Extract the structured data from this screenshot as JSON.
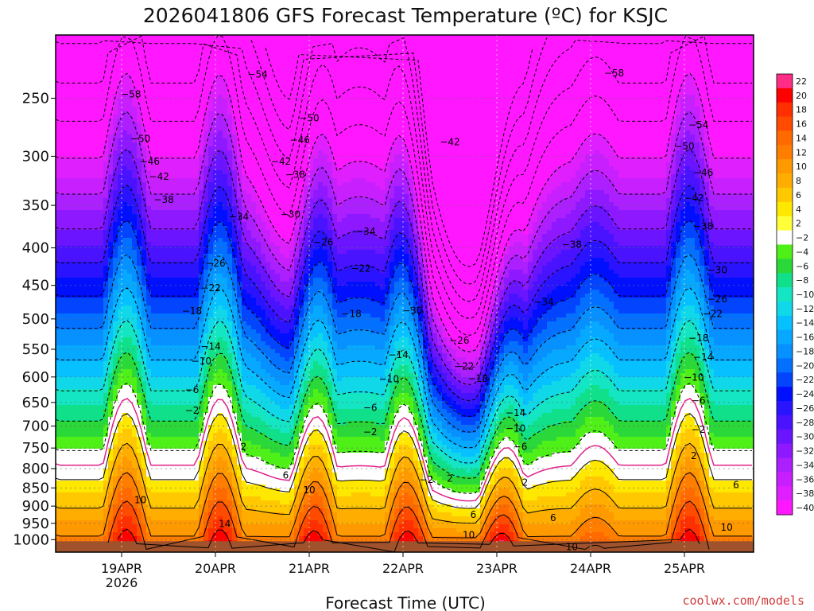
{
  "chart_data": {
    "type": "heatmap",
    "title": "2026041806 GFS Forecast Temperature (ºC) for KSJC",
    "xlabel": "Forecast Time (UTC)",
    "ylabel": "",
    "credit": "coolwx.com/models",
    "x_ticks": [
      {
        "label": "19APR",
        "sub": "2026"
      },
      {
        "label": "20APR",
        "sub": ""
      },
      {
        "label": "21APR",
        "sub": ""
      },
      {
        "label": "22APR",
        "sub": ""
      },
      {
        "label": "23APR",
        "sub": ""
      },
      {
        "label": "24APR",
        "sub": ""
      },
      {
        "label": "25APR",
        "sub": ""
      }
    ],
    "y_ticks": [
      250,
      300,
      350,
      400,
      450,
      500,
      550,
      600,
      650,
      700,
      750,
      800,
      850,
      900,
      950,
      1000
    ],
    "y_unit": "hPa",
    "y_scale": "log",
    "y_direction": "descending-upward",
    "grid": true,
    "colorbar": {
      "labels": [
        22,
        20,
        18,
        16,
        14,
        12,
        10,
        8,
        6,
        4,
        2,
        -2,
        -4,
        -6,
        -8,
        -10,
        -12,
        -14,
        -16,
        -18,
        -20,
        -22,
        -24,
        -26,
        -28,
        -30,
        -32,
        -34,
        -36,
        -38,
        -40
      ],
      "colors": [
        "#ff2d86",
        "#ff0000",
        "#ff2f00",
        "#ff4b00",
        "#ff6a00",
        "#ff7e00",
        "#ff9900",
        "#ffad00",
        "#ffc800",
        "#ffe800",
        "#ffff3a",
        "#ffffff",
        "#4ef017",
        "#2bd83a",
        "#10e08a",
        "#14e6c3",
        "#10d8e8",
        "#06c0ff",
        "#07a8ff",
        "#0790ff",
        "#0470ff",
        "#0345ff",
        "#0010ff",
        "#2a14ff",
        "#4a13ff",
        "#6a14ff",
        "#8e18ff",
        "#ac1fff",
        "#c81fff",
        "#e01fff",
        "#ff18ff"
      ]
    },
    "isotherms": [
      {
        "value": -58,
        "labels": [
          [
            0.1,
            247
          ]
        ]
      },
      {
        "value": -54,
        "labels": [
          [
            1.45,
            232
          ],
          [
            6.15,
            272
          ]
        ]
      },
      {
        "value": -58,
        "labels": [
          [
            5.25,
            231
          ]
        ]
      },
      {
        "value": -50,
        "labels": [
          [
            0.2,
            284
          ],
          [
            2.0,
            266
          ],
          [
            6.0,
            291
          ]
        ]
      },
      {
        "value": -46,
        "labels": [
          [
            0.3,
            305
          ],
          [
            1.9,
            285
          ],
          [
            6.2,
            316
          ]
        ]
      },
      {
        "value": -42,
        "labels": [
          [
            0.4,
            320
          ],
          [
            1.7,
            305
          ],
          [
            3.5,
            287
          ],
          [
            6.1,
            342
          ]
        ]
      },
      {
        "value": -38,
        "labels": [
          [
            0.45,
            344
          ],
          [
            1.85,
            318
          ],
          [
            6.2,
            374
          ],
          [
            4.8,
            396
          ]
        ]
      },
      {
        "value": -34,
        "labels": [
          [
            1.25,
            363
          ],
          [
            2.6,
            380
          ],
          [
            4.5,
            474
          ]
        ]
      },
      {
        "value": -30,
        "labels": [
          [
            1.8,
            360
          ],
          [
            3.1,
            487
          ],
          [
            6.35,
            429
          ]
        ]
      },
      {
        "value": -26,
        "labels": [
          [
            1.0,
            420
          ],
          [
            2.15,
            393
          ],
          [
            3.6,
            535
          ],
          [
            6.35,
            470
          ]
        ]
      },
      {
        "value": -22,
        "labels": [
          [
            0.95,
            454
          ],
          [
            2.55,
            427
          ],
          [
            3.65,
            580
          ],
          [
            6.3,
            492
          ]
        ]
      },
      {
        "value": -18,
        "labels": [
          [
            0.75,
            488
          ],
          [
            2.45,
            492
          ],
          [
            3.8,
            603
          ],
          [
            6.15,
            531
          ]
        ]
      },
      {
        "value": -14,
        "labels": [
          [
            0.95,
            545
          ],
          [
            2.95,
            560
          ],
          [
            4.2,
            672
          ],
          [
            6.2,
            564
          ]
        ]
      },
      {
        "value": -10,
        "labels": [
          [
            0.85,
            571
          ],
          [
            2.85,
            604
          ],
          [
            4.2,
            705
          ],
          [
            6.1,
            601
          ]
        ]
      },
      {
        "value": -6,
        "labels": [
          [
            0.75,
            625
          ],
          [
            2.65,
            661
          ],
          [
            4.25,
            747
          ],
          [
            6.15,
            646
          ]
        ]
      },
      {
        "value": -2,
        "labels": [
          [
            0.75,
            667
          ],
          [
            2.65,
            713
          ],
          [
            3.25,
            829
          ],
          [
            6.15,
            708
          ]
        ]
      },
      {
        "value": 2,
        "labels": [
          [
            1.3,
            747
          ],
          [
            3.5,
            825
          ],
          [
            4.3,
            836
          ],
          [
            6.1,
            769
          ]
        ]
      },
      {
        "value": 6,
        "labels": [
          [
            1.75,
            817
          ],
          [
            3.75,
            925
          ],
          [
            4.6,
            934
          ],
          [
            6.55,
            842
          ]
        ]
      },
      {
        "value": 10,
        "labels": [
          [
            0.2,
            883
          ],
          [
            2.0,
            856
          ],
          [
            3.7,
            986
          ],
          [
            4.8,
            1023
          ],
          [
            6.45,
            963
          ]
        ]
      },
      {
        "value": 14,
        "labels": [
          [
            1.1,
            952
          ],
          [
            6.8,
            919
          ]
        ]
      }
    ],
    "ylim": [
      1040,
      205
    ]
  }
}
